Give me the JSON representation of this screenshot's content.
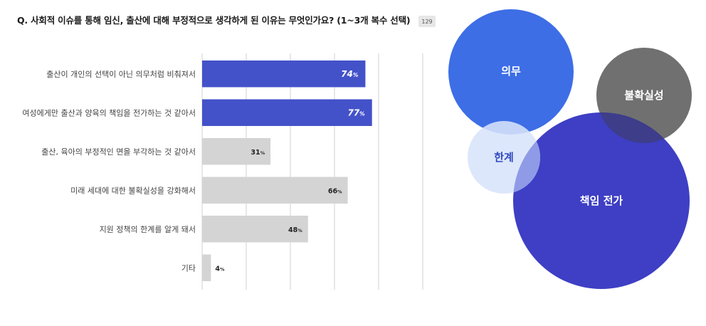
{
  "question": "Q. 사회적 이슈를 통해 임신, 출산에 대해 부정적으로 생각하게 된 이유는 무엇인가요? (1~3개 복수 선택)",
  "count_badge": "129",
  "chart_data": [
    {
      "type": "bar",
      "orientation": "horizontal",
      "categories": [
        "출산이 개인의 선택이 아닌 의무처럼 비춰져서",
        "여성에게만 출산과 양육의 책임을 전가하는 것 같아서",
        "출산, 육아의 부정적인 면을 부각하는 것 같아서",
        "미래 세대에 대한 불확실성을 강화해서",
        "지원 정책의 한계를 알게 돼서",
        "기타"
      ],
      "values": [
        74,
        77,
        31,
        66,
        48,
        4
      ],
      "unit": "%",
      "xlim": [
        0,
        100
      ],
      "grid": true,
      "colors": [
        "#4352c9",
        "#4352c9",
        "#d4d4d4",
        "#d4d4d4",
        "#d4d4d4",
        "#d4d4d4"
      ],
      "highlight_color": "#4352c9",
      "base_color": "#d4d4d4"
    },
    {
      "type": "bubble",
      "bubbles": [
        {
          "label": "의무",
          "color": "#3d6ee6",
          "text_color": "#ffffff"
        },
        {
          "label": "불확실성",
          "color": "#707070",
          "text_color": "#ffffff"
        },
        {
          "label": "책임 전가",
          "color": "#3e3fc4",
          "text_color": "#ffffff"
        },
        {
          "label": "한계",
          "color": "#d8e4fb",
          "text_color": "#2f4ac2"
        }
      ]
    }
  ]
}
